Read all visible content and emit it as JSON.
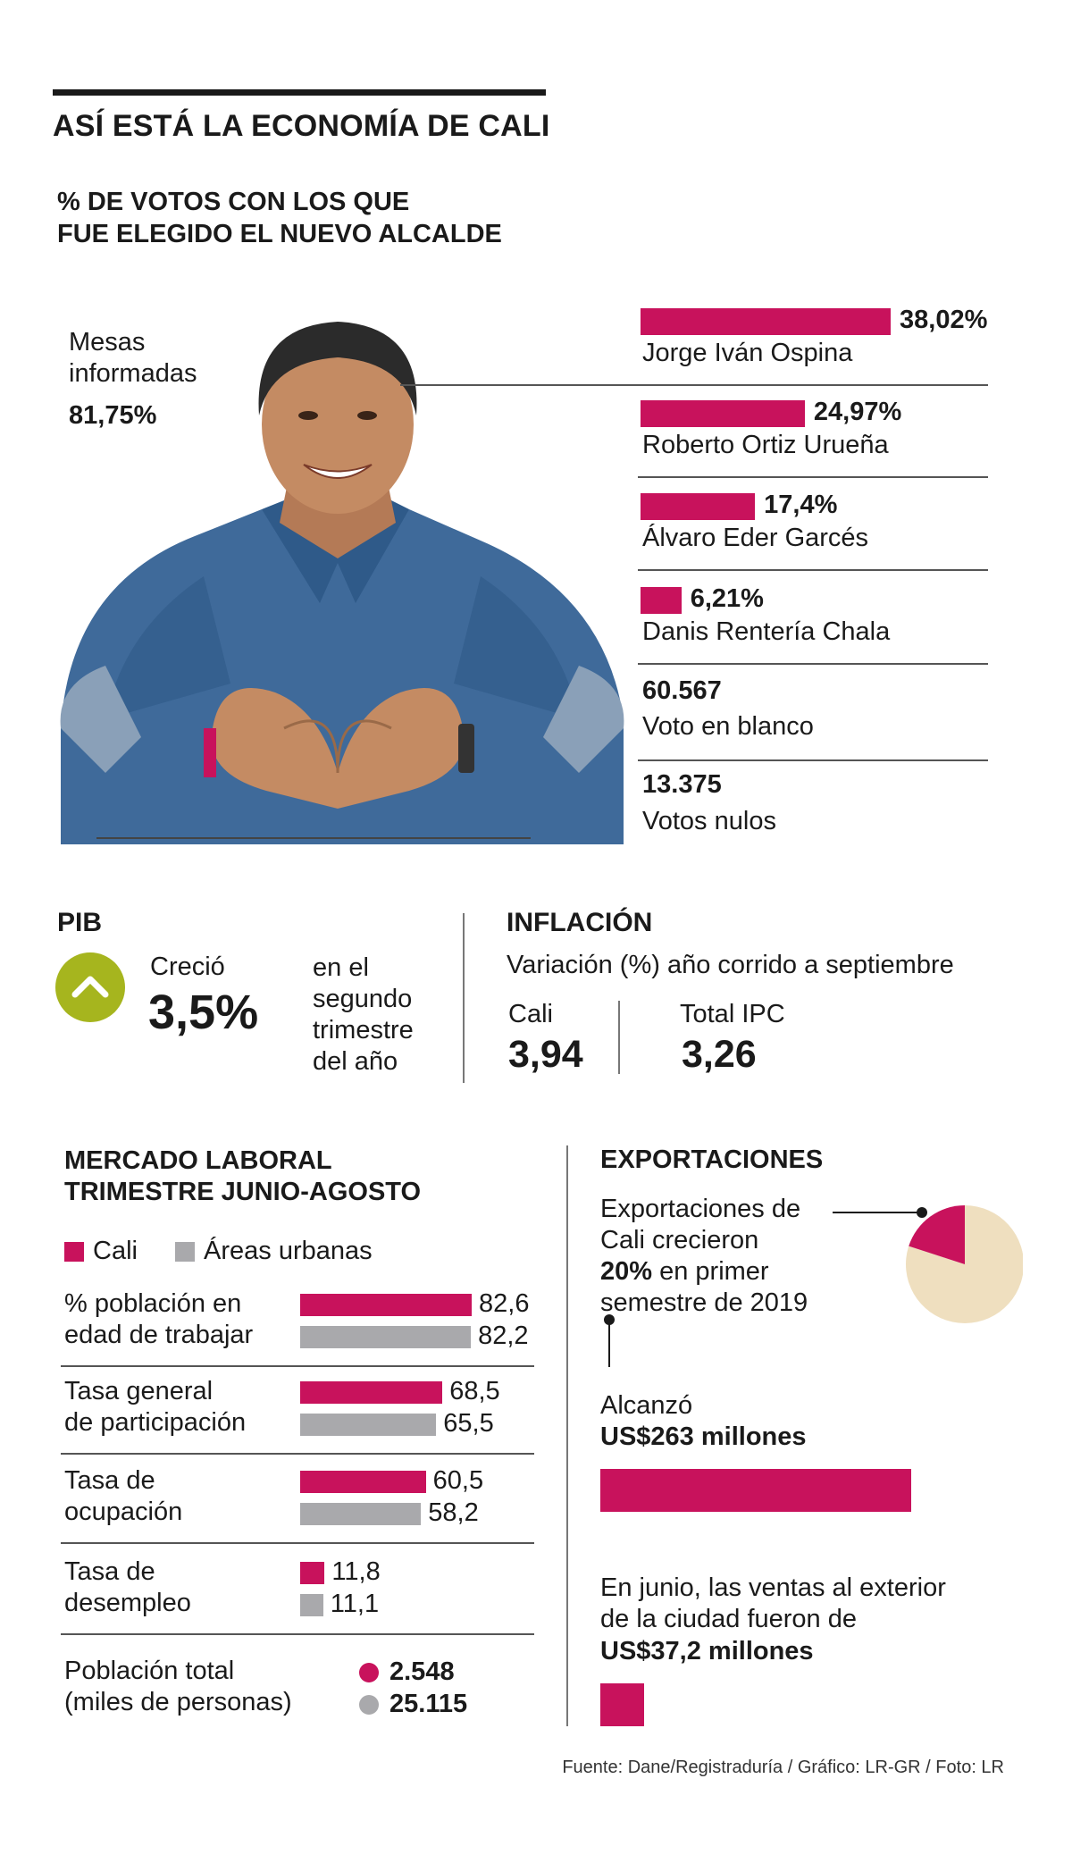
{
  "title": "ASÍ ESTÁ LA ECONOMÍA DE CALI",
  "votes": {
    "subtitle_line1": "% DE VOTOS CON LOS QUE",
    "subtitle_line2": "FUE ELEGIDO EL NUEVO ALCALDE",
    "mesas_line1": "Mesas",
    "mesas_line2": "informadas",
    "mesas_value": "81,75%",
    "candidates": [
      {
        "name": "Jorge Iván Ospina",
        "value_label": "38,02%"
      },
      {
        "name": "Roberto Ortiz Urueña",
        "value_label": "24,97%"
      },
      {
        "name": "Álvaro Eder Garcés",
        "value_label": "17,4%"
      },
      {
        "name": "Danis Rentería Chala",
        "value_label": "6,21%"
      }
    ],
    "blank_value": "60.567",
    "blank_label": "Voto en blanco",
    "null_value": "13.375",
    "null_label": "Votos nulos"
  },
  "pib": {
    "heading": "PIB",
    "grew_label": "Creció",
    "value": "3,5%",
    "desc_lines": [
      "en el",
      "segundo",
      "trimestre",
      "del año"
    ],
    "accent_color": "#a6b51e"
  },
  "inflation": {
    "heading": "INFLACIÓN",
    "subtitle": "Variación (%) año corrido a septiembre",
    "cali_label": "Cali",
    "cali_value": "3,94",
    "total_label": "Total IPC",
    "total_value": "3,26"
  },
  "labor": {
    "heading_line1": "MERCADO LABORAL",
    "heading_line2": "TRIMESTRE JUNIO-AGOSTO",
    "legend_cali": "Cali",
    "legend_urban": "Áreas urbanas",
    "rows": [
      {
        "label1": "% población en",
        "label2": "edad de trabajar",
        "cali_label": "82,6",
        "urban_label": "82,2"
      },
      {
        "label1": "Tasa general",
        "label2": "de participación",
        "cali_label": "68,5",
        "urban_label": "65,5"
      },
      {
        "label1": "Tasa de",
        "label2": "ocupación",
        "cali_label": "60,5",
        "urban_label": "58,2"
      },
      {
        "label1": "Tasa de",
        "label2": "desempleo",
        "cali_label": "11,8",
        "urban_label": "11,1"
      }
    ],
    "population_label1": "Población total",
    "population_label2": "(miles de personas)",
    "population_cali": "2.548",
    "population_urban": "25.115"
  },
  "exports": {
    "heading": "EXPORTACIONES",
    "desc_line1": "Exportaciones de",
    "desc_line2": "Cali crecieron",
    "desc_line3_bold": "20%",
    "desc_line3_rest": " en primer",
    "desc_line4": "semestre de 2019",
    "reached_label": "Alcanzó",
    "reached_value": "US$263 millones",
    "june_line1": "En junio, las ventas al exterior",
    "june_line2": "de la ciudad fueron de",
    "june_value": "US$37,2 millones",
    "pie_color": "#c8125c",
    "pie_rest_color": "#efdfbf"
  },
  "source": "Fuente: Dane/Registraduría / Gráfico: LR-GR / Foto: LR",
  "colors": {
    "pink": "#c8125c",
    "gray": "#a9a9ac",
    "pib_green": "#a6b51e",
    "pie_beige": "#efdfbf"
  },
  "chart_data": [
    {
      "type": "bar",
      "categories": [
        "Jorge Iván Ospina",
        "Roberto Ortiz Urueña",
        "Álvaro Eder Garcés",
        "Danis Rentería Chala"
      ],
      "values": [
        38.02,
        24.97,
        17.4,
        6.21
      ],
      "title": "% DE VOTOS CON LOS QUE FUE ELEGIDO EL NUEVO ALCALDE"
    },
    {
      "type": "bar",
      "categories": [
        "% población en edad de trabajar",
        "Tasa general de participación",
        "Tasa de ocupación",
        "Tasa de desempleo"
      ],
      "series": [
        {
          "name": "Cali",
          "values": [
            82.6,
            68.5,
            60.5,
            11.8
          ]
        },
        {
          "name": "Áreas urbanas",
          "values": [
            82.2,
            65.5,
            58.2,
            11.1
          ]
        }
      ],
      "title": "MERCADO LABORAL TRIMESTRE JUNIO-AGOSTO"
    },
    {
      "type": "pie",
      "categories": [
        "Exportaciones de Cali crecieron 20% en primer semestre de 2019"
      ],
      "values": [
        20
      ],
      "title": "EXPORTACIONES"
    },
    {
      "type": "bar",
      "categories": [
        "Alcanzó US$263 millones",
        "En junio, las ventas al exterior de la ciudad fueron de US$37,2 millones"
      ],
      "values": [
        263,
        37.2
      ],
      "title": "EXPORTACIONES"
    }
  ]
}
